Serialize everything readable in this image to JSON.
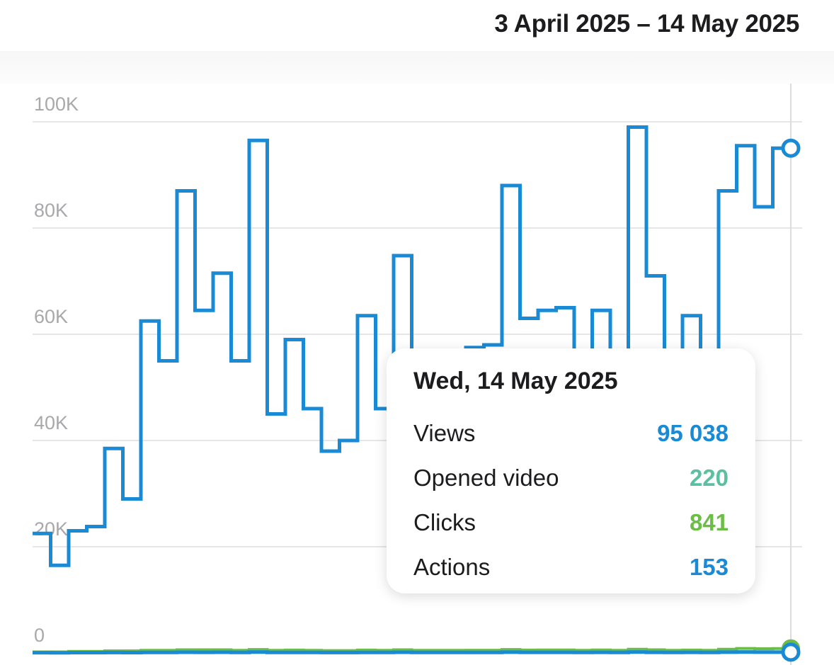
{
  "header": {
    "date_range": "3 April 2025 – 14 May 2025"
  },
  "colors": {
    "views": "#1a8ad4",
    "opened_video": "#5bbfa0",
    "clicks": "#6cbd45",
    "actions": "#1a8ad4",
    "grid": "#e6e6e6",
    "tick": "#a9a9ab"
  },
  "tooltip": {
    "date": "Wed, 14 May 2025",
    "rows": [
      {
        "label": "Views",
        "value": "95 038",
        "color": "#1a8ad4"
      },
      {
        "label": "Opened video",
        "value": "220",
        "color": "#5bbfa0"
      },
      {
        "label": "Clicks",
        "value": "841",
        "color": "#6cbd45"
      },
      {
        "label": "Actions",
        "value": "153",
        "color": "#1a8ad4"
      }
    ]
  },
  "chart_data": {
    "type": "line",
    "step": true,
    "x_start": "2025-04-03",
    "x_end": "2025-05-14",
    "ylim": [
      0,
      100000
    ],
    "y_ticks": [
      0,
      20000,
      40000,
      60000,
      80000,
      100000
    ],
    "y_tick_labels": [
      "0",
      "20K",
      "40K",
      "60K",
      "80K",
      "100K"
    ],
    "grid": true,
    "highlighted_date": "2025-05-14",
    "series": [
      {
        "name": "Views",
        "values": [
          22500,
          16500,
          23000,
          23800,
          38500,
          29000,
          62500,
          55000,
          87000,
          64500,
          71500,
          55000,
          96500,
          45000,
          59000,
          46000,
          38000,
          40000,
          63500,
          46000,
          74800,
          46000,
          52000,
          52000,
          57500,
          58000,
          88000,
          63000,
          64500,
          65000,
          52000,
          64500,
          52000,
          99000,
          71000,
          52000,
          63500,
          52000,
          87000,
          95500,
          84000,
          95038
        ]
      },
      {
        "name": "Opened video",
        "values": [
          100,
          100,
          120,
          120,
          150,
          150,
          180,
          180,
          230,
          220,
          220,
          200,
          250,
          180,
          200,
          180,
          160,
          160,
          200,
          180,
          220,
          180,
          190,
          190,
          200,
          200,
          240,
          210,
          210,
          210,
          190,
          210,
          190,
          250,
          220,
          190,
          210,
          190,
          230,
          250,
          230,
          220
        ]
      },
      {
        "name": "Clicks",
        "values": [
          200,
          200,
          300,
          300,
          400,
          400,
          500,
          500,
          600,
          600,
          600,
          500,
          650,
          500,
          550,
          500,
          450,
          450,
          550,
          500,
          600,
          500,
          500,
          500,
          520,
          520,
          650,
          550,
          560,
          560,
          500,
          560,
          500,
          700,
          600,
          500,
          550,
          500,
          700,
          850,
          800,
          841
        ]
      },
      {
        "name": "Actions",
        "values": [
          50,
          40,
          60,
          60,
          80,
          70,
          110,
          100,
          140,
          120,
          130,
          100,
          160,
          90,
          110,
          90,
          80,
          80,
          110,
          90,
          130,
          90,
          100,
          100,
          105,
          105,
          150,
          115,
          118,
          118,
          100,
          118,
          100,
          170,
          125,
          100,
          115,
          100,
          150,
          160,
          145,
          153
        ]
      }
    ]
  }
}
